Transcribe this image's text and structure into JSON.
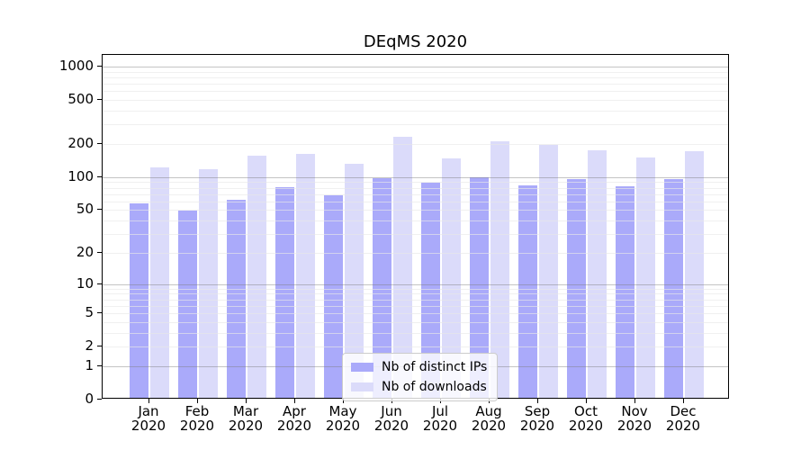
{
  "chart_data": {
    "type": "bar",
    "title": "DEqMS 2020",
    "months": [
      "Jan",
      "Feb",
      "Mar",
      "Apr",
      "May",
      "Jun",
      "Jul",
      "Aug",
      "Sep",
      "Oct",
      "Nov",
      "Dec"
    ],
    "year": "2020",
    "series": [
      {
        "name": "Nb of distinct IPs",
        "color": "#aaaafa",
        "values": [
          56,
          48,
          60,
          78,
          66,
          95,
          85,
          97,
          81,
          92,
          80,
          92
        ]
      },
      {
        "name": "Nb of downloads",
        "color": "#dbdbfa",
        "values": [
          119,
          114,
          151,
          156,
          128,
          224,
          143,
          203,
          188,
          168,
          145,
          165
        ]
      }
    ],
    "y_scale": "log1p",
    "ylim": [
      0,
      1270
    ],
    "y_ticks": [
      0,
      1,
      2,
      5,
      10,
      20,
      50,
      100,
      200,
      500,
      1000
    ],
    "grid": {
      "major": [
        1,
        10,
        100,
        1000
      ],
      "minor": [
        2,
        3,
        4,
        5,
        6,
        7,
        8,
        9,
        20,
        30,
        40,
        50,
        60,
        70,
        80,
        90,
        200,
        300,
        400,
        500,
        600,
        700,
        800,
        900
      ]
    },
    "legend_position": "lower center",
    "grid_on": true
  }
}
